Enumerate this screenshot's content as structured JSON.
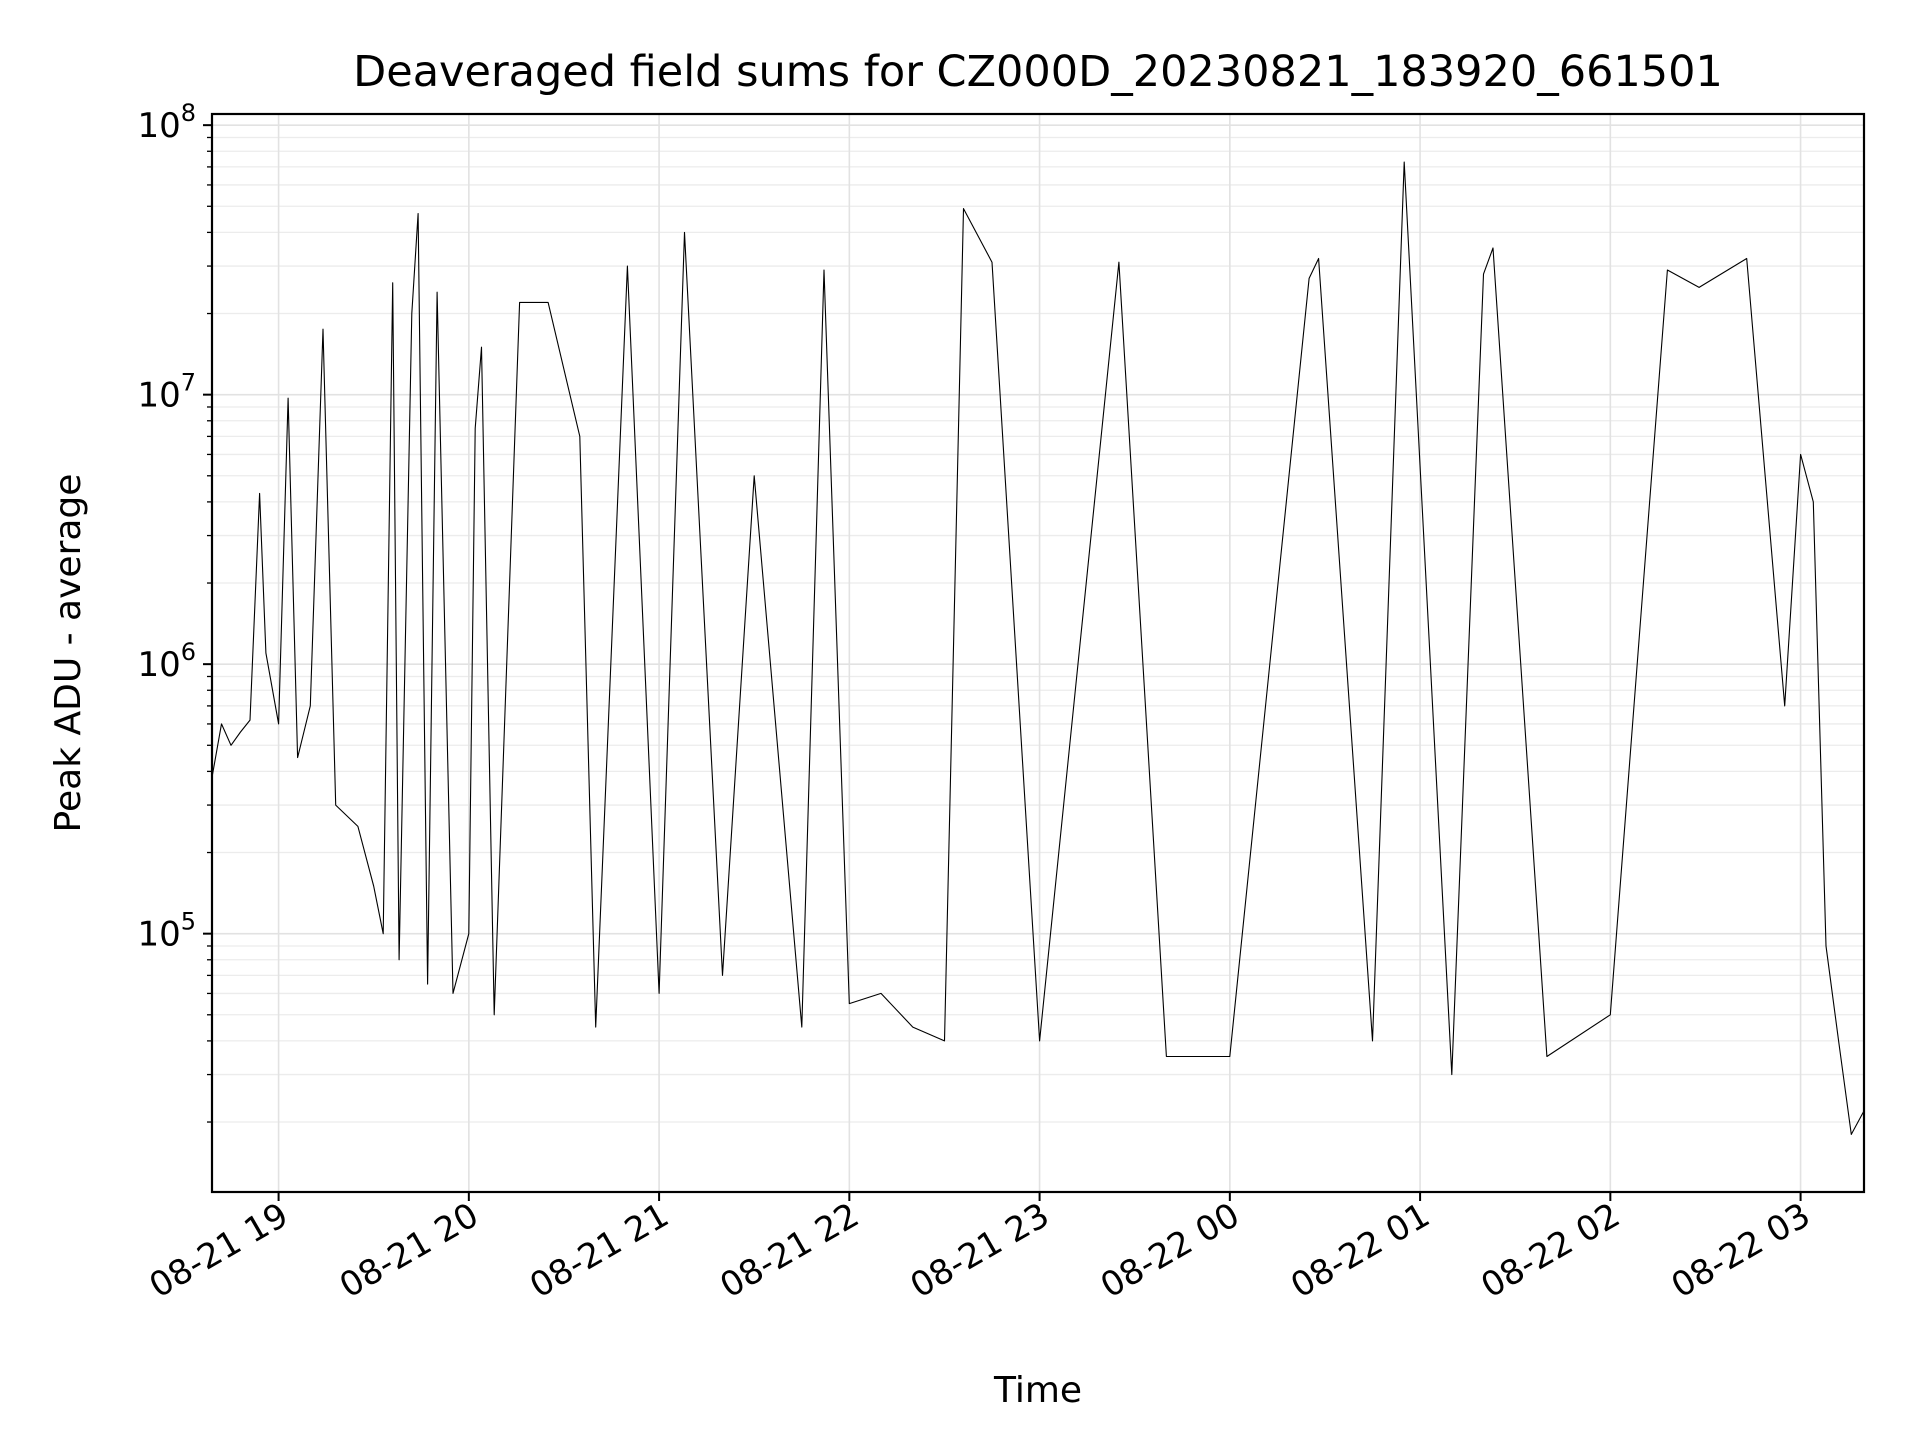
{
  "chart_data": {
    "type": "line",
    "title": "Deaveraged field sums for CZ000D_20230821_183920_661501",
    "xlabel": "Time",
    "ylabel": "Peak ADU - average",
    "yscale": "log",
    "ylim": [
      11000,
      110000000
    ],
    "xlim": [
      "2023-08-21 18:39",
      "2023-08-22 03:20"
    ],
    "x_ticks": [
      {
        "t": "2023-08-21 19:00",
        "label": "08-21 19"
      },
      {
        "t": "2023-08-21 20:00",
        "label": "08-21 20"
      },
      {
        "t": "2023-08-21 21:00",
        "label": "08-21 21"
      },
      {
        "t": "2023-08-21 22:00",
        "label": "08-21 22"
      },
      {
        "t": "2023-08-21 23:00",
        "label": "08-21 23"
      },
      {
        "t": "2023-08-22 00:00",
        "label": "08-22 00"
      },
      {
        "t": "2023-08-22 01:00",
        "label": "08-22 01"
      },
      {
        "t": "2023-08-22 02:00",
        "label": "08-22 02"
      },
      {
        "t": "2023-08-22 03:00",
        "label": "08-22 03"
      }
    ],
    "y_ticks": [
      {
        "value": 100000,
        "base": "10",
        "exp": "5"
      },
      {
        "value": 1000000,
        "base": "10",
        "exp": "6"
      },
      {
        "value": 10000000,
        "base": "10",
        "exp": "7"
      },
      {
        "value": 100000000,
        "base": "10",
        "exp": "8"
      }
    ],
    "grid": true,
    "line_color": "#000000",
    "series": [
      {
        "values": [
          [
            "2023-08-21 18:39",
            380000
          ],
          [
            "2023-08-21 18:42",
            600000
          ],
          [
            "2023-08-21 18:45",
            500000
          ],
          [
            "2023-08-21 18:48",
            560000
          ],
          [
            "2023-08-21 18:51",
            620000
          ],
          [
            "2023-08-21 18:54",
            4300000
          ],
          [
            "2023-08-21 18:56",
            1100000
          ],
          [
            "2023-08-21 19:00",
            600000
          ],
          [
            "2023-08-21 19:03",
            9700000
          ],
          [
            "2023-08-21 19:06",
            450000
          ],
          [
            "2023-08-21 19:10",
            700000
          ],
          [
            "2023-08-21 19:14",
            17500000
          ],
          [
            "2023-08-21 19:18",
            300000
          ],
          [
            "2023-08-21 19:25",
            250000
          ],
          [
            "2023-08-21 19:30",
            150000
          ],
          [
            "2023-08-21 19:33",
            100000
          ],
          [
            "2023-08-21 19:36",
            26000000
          ],
          [
            "2023-08-21 19:38",
            80000
          ],
          [
            "2023-08-21 19:42",
            20000000
          ],
          [
            "2023-08-21 19:44",
            47000000
          ],
          [
            "2023-08-21 19:47",
            65000
          ],
          [
            "2023-08-21 19:50",
            24000000
          ],
          [
            "2023-08-21 19:55",
            60000
          ],
          [
            "2023-08-21 20:00",
            100000
          ],
          [
            "2023-08-21 20:02",
            7500000
          ],
          [
            "2023-08-21 20:04",
            15000000
          ],
          [
            "2023-08-21 20:08",
            50000
          ],
          [
            "2023-08-21 20:16",
            22000000
          ],
          [
            "2023-08-21 20:25",
            22000000
          ],
          [
            "2023-08-21 20:35",
            7000000
          ],
          [
            "2023-08-21 20:40",
            45000
          ],
          [
            "2023-08-21 20:50",
            30000000
          ],
          [
            "2023-08-21 21:00",
            60000
          ],
          [
            "2023-08-21 21:08",
            40000000
          ],
          [
            "2023-08-21 21:20",
            70000
          ],
          [
            "2023-08-21 21:30",
            5000000
          ],
          [
            "2023-08-21 21:45",
            45000
          ],
          [
            "2023-08-21 21:52",
            29000000
          ],
          [
            "2023-08-21 22:00",
            55000
          ],
          [
            "2023-08-21 22:10",
            60000
          ],
          [
            "2023-08-21 22:20",
            45000
          ],
          [
            "2023-08-21 22:30",
            40000
          ],
          [
            "2023-08-21 22:36",
            49000000
          ],
          [
            "2023-08-21 22:45",
            31000000
          ],
          [
            "2023-08-21 23:00",
            40000
          ],
          [
            "2023-08-21 23:25",
            31000000
          ],
          [
            "2023-08-21 23:40",
            35000
          ],
          [
            "2023-08-22 00:00",
            35000
          ],
          [
            "2023-08-22 00:25",
            27000000
          ],
          [
            "2023-08-22 00:28",
            32000000
          ],
          [
            "2023-08-22 00:45",
            40000
          ],
          [
            "2023-08-22 00:55",
            73000000
          ],
          [
            "2023-08-22 01:10",
            30000
          ],
          [
            "2023-08-22 01:20",
            28000000
          ],
          [
            "2023-08-22 01:23",
            35000000
          ],
          [
            "2023-08-22 01:40",
            35000
          ],
          [
            "2023-08-22 02:00",
            50000
          ],
          [
            "2023-08-22 02:18",
            29000000
          ],
          [
            "2023-08-22 02:28",
            25000000
          ],
          [
            "2023-08-22 02:43",
            32000000
          ],
          [
            "2023-08-22 02:55",
            700000
          ],
          [
            "2023-08-22 03:00",
            6000000
          ],
          [
            "2023-08-22 03:04",
            4000000
          ],
          [
            "2023-08-22 03:08",
            90000
          ],
          [
            "2023-08-22 03:12",
            40000
          ],
          [
            "2023-08-22 03:16",
            18000
          ],
          [
            "2023-08-22 03:20",
            22000
          ]
        ]
      }
    ]
  }
}
